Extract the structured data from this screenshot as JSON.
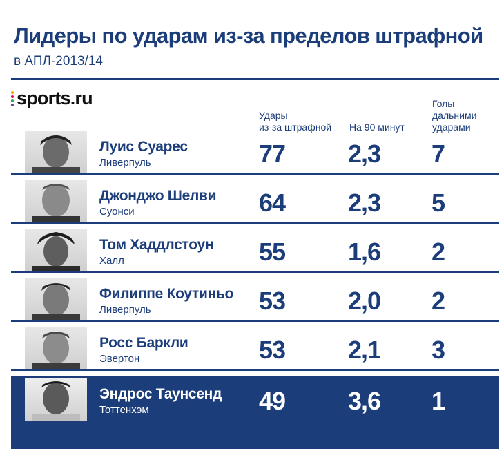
{
  "header": {
    "title": "Лидеры по ударам из-за пределов штрафной",
    "subtitle": "в АПЛ-2013/14"
  },
  "brand": {
    "logo_text": "sports.ru",
    "dot_colors": [
      "#f4a300",
      "#e6004c",
      "#2aa74a",
      "#6a3fa0"
    ]
  },
  "columns": {
    "shots_line1": "Удары",
    "shots_line2": "из-за штрафной",
    "per90": "На 90 минут",
    "goals_line1": "Голы",
    "goals_line2": "дальними",
    "goals_line3": "ударами"
  },
  "colors": {
    "primary": "#1b3d7a",
    "highlight_bg": "#1b3d7a",
    "highlight_text": "#ffffff"
  },
  "players": [
    {
      "name": "Луис Суарес",
      "club": "Ливерпуль",
      "shots": "77",
      "per90": "2,3",
      "goals": "7"
    },
    {
      "name": "Джонджо Шелви",
      "club": "Суонси",
      "shots": "64",
      "per90": "2,3",
      "goals": "5"
    },
    {
      "name": "Том Хаддлстоун",
      "club": "Халл",
      "shots": "55",
      "per90": "1,6",
      "goals": "2"
    },
    {
      "name": "Филиппе Коутиньо",
      "club": "Ливерпуль",
      "shots": "53",
      "per90": "2,0",
      "goals": "2"
    },
    {
      "name": "Росс Баркли",
      "club": "Эвертон",
      "shots": "53",
      "per90": "2,1",
      "goals": "3"
    },
    {
      "name": "Эндрос Таунсенд",
      "club": "Тоттенхэм",
      "shots": "49",
      "per90": "3,6",
      "goals": "1",
      "highlighted": true
    }
  ]
}
